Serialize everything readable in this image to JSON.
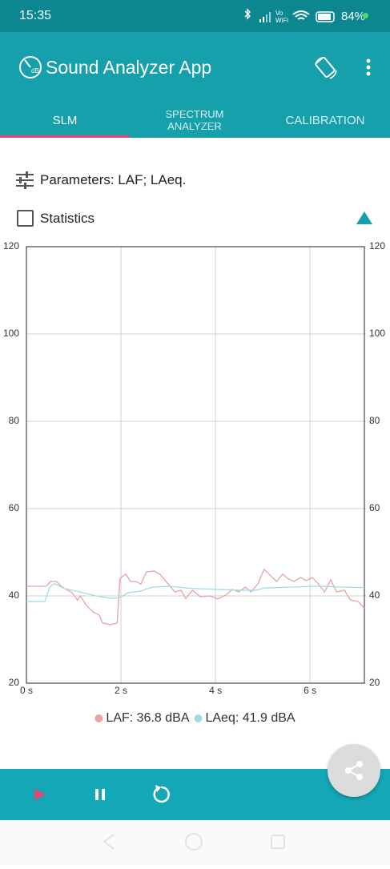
{
  "status": {
    "time": "15:35",
    "battery": "84%"
  },
  "app_bar": {
    "title": "Sound Analyzer App"
  },
  "tabs": [
    "SLM",
    "SPECTRUM ANALYZER",
    "CALIBRATION"
  ],
  "parameters": "Parameters: LAF; LAeq.",
  "statistics": "Statistics",
  "chart_data": {
    "type": "line",
    "xlim": [
      0,
      7.15
    ],
    "xticks": [
      {
        "value": 0,
        "label": "0 s"
      },
      {
        "value": 2,
        "label": "2 s"
      },
      {
        "value": 4,
        "label": "4 s"
      },
      {
        "value": 6,
        "label": "6 s"
      }
    ],
    "ylim": [
      20,
      120
    ],
    "yticks": [
      20,
      40,
      60,
      80,
      100,
      120
    ],
    "y2lim": [
      20,
      120
    ],
    "y2ticks": [
      20,
      40,
      60,
      80,
      100,
      120
    ],
    "grid": true,
    "legend": "bottom",
    "series": [
      {
        "name": "LAF: 36.8 dBA",
        "color": "#e8a3a3",
        "x": [
          0,
          0.42,
          0.51,
          0.63,
          0.76,
          0.97,
          1.08,
          1.14,
          1.27,
          1.41,
          1.54,
          1.61,
          1.78,
          1.92,
          1.98,
          2.1,
          2.2,
          2.32,
          2.42,
          2.54,
          2.71,
          2.83,
          2.97,
          3.14,
          3.27,
          3.37,
          3.51,
          3.68,
          3.88,
          4.05,
          4.22,
          4.36,
          4.49,
          4.63,
          4.75,
          4.9,
          5.03,
          5.17,
          5.29,
          5.42,
          5.54,
          5.66,
          5.8,
          5.92,
          6.05,
          6.17,
          6.31,
          6.44,
          6.56,
          6.73,
          6.85,
          7.02,
          7.15
        ],
        "values": [
          42.2,
          42.2,
          43.3,
          43.3,
          42.0,
          40.7,
          39.0,
          40.0,
          37.8,
          36.3,
          35.6,
          33.8,
          33.4,
          33.8,
          44.0,
          45.0,
          43.3,
          43.3,
          42.7,
          45.5,
          45.7,
          44.9,
          43.1,
          40.9,
          41.3,
          39.4,
          41.3,
          39.8,
          40.0,
          39.3,
          40.2,
          41.5,
          40.9,
          42.0,
          40.9,
          42.8,
          46.1,
          44.6,
          43.3,
          45.0,
          43.9,
          43.3,
          44.2,
          43.5,
          44.2,
          42.8,
          40.9,
          43.7,
          40.9,
          41.3,
          39.1,
          38.7,
          37.2
        ]
      },
      {
        "name": "LAeq: 41.9 dBA",
        "color": "#9fdde6",
        "x": [
          0,
          0.39,
          0.49,
          0.59,
          0.8,
          1.14,
          1.47,
          1.81,
          1.98,
          2.15,
          2.41,
          2.66,
          3.0,
          3.51,
          4.02,
          4.53,
          4.86,
          5.03,
          5.54,
          6.22,
          6.73,
          7.15
        ],
        "values": [
          38.7,
          38.7,
          42.0,
          42.8,
          41.7,
          40.9,
          40.0,
          39.4,
          39.6,
          40.7,
          41.1,
          42.0,
          42.2,
          41.7,
          41.5,
          41.3,
          41.3,
          41.8,
          42.0,
          42.2,
          42.0,
          41.9
        ]
      }
    ]
  }
}
